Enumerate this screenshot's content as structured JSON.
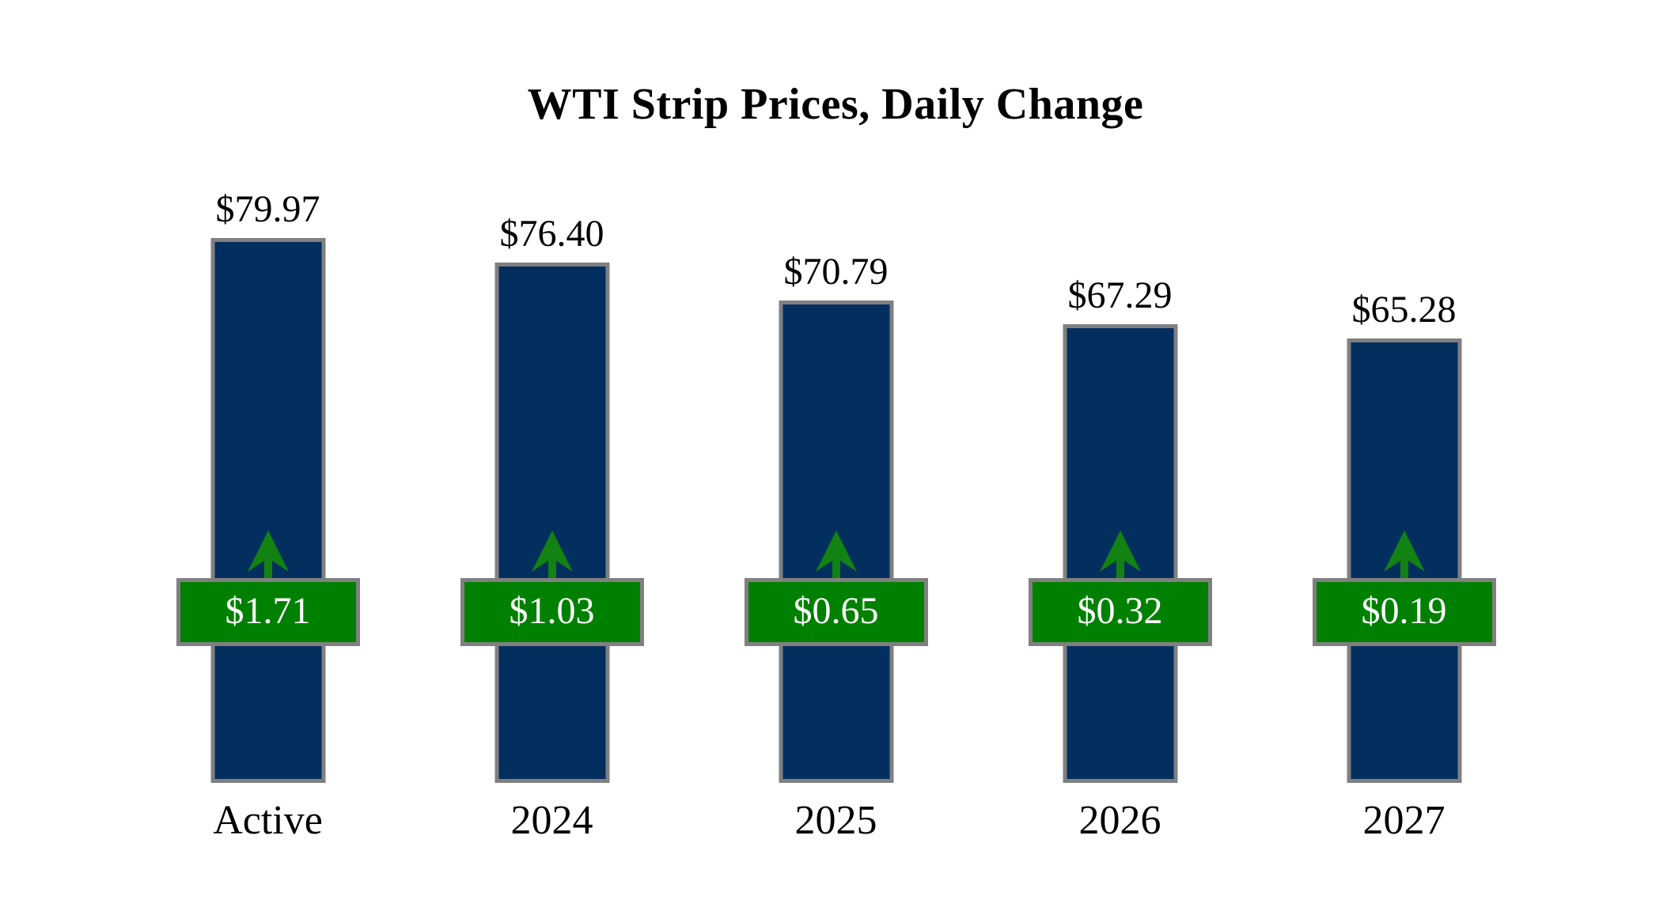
{
  "title": "WTI Strip Prices, Daily Change",
  "chart_data": {
    "type": "bar",
    "title": "WTI Strip Prices, Daily Change",
    "categories": [
      "Active",
      "2024",
      "2025",
      "2026",
      "2027"
    ],
    "series": [
      {
        "name": "strip_price",
        "values": [
          79.97,
          76.4,
          70.79,
          67.29,
          65.28
        ],
        "labels": [
          "$79.97",
          "$76.40",
          "$70.79",
          "$67.29",
          "$65.28"
        ]
      },
      {
        "name": "daily_change",
        "values": [
          1.71,
          1.03,
          0.65,
          0.32,
          0.19
        ],
        "labels": [
          "$1.71",
          "$1.03",
          "$0.65",
          "$0.32",
          "$0.19"
        ],
        "direction": "up"
      }
    ],
    "ylim": [
      0,
      83
    ],
    "grid": false,
    "legend": "none",
    "colors": {
      "bar_fill": "#032f5e",
      "bar_border": "#808080",
      "badge_fill": "#008000",
      "badge_border": "#808080",
      "badge_text": "#ffffff",
      "arrow": "#128212",
      "label_text": "#000000",
      "background": "#ffffff"
    }
  }
}
